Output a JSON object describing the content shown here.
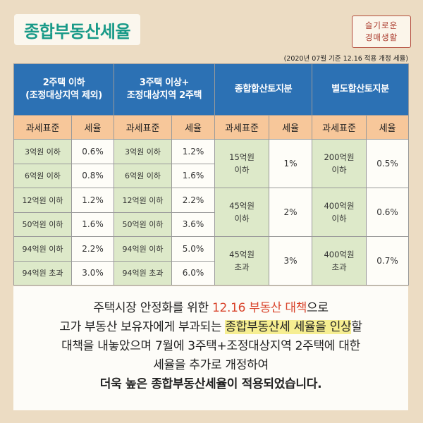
{
  "title": "종합부동산세율",
  "stamp": {
    "line1": "슬기로운",
    "line2": "경매생활"
  },
  "note": "(2020년 07월 기준  12.16 적용 개정 세율)",
  "table": {
    "headers": [
      {
        "line1": "2주택 이하",
        "line2": "(조정대상지역 제외)"
      },
      {
        "line1": "3주택 이상+",
        "line2": "조정대상지역 2주택"
      },
      {
        "line1": "종합합산토지분",
        "line2": ""
      },
      {
        "line1": "별도합산토지분",
        "line2": ""
      }
    ],
    "subheaders": [
      "과세표준",
      "세율",
      "과세표준",
      "세율",
      "과세표준",
      "세율",
      "과세표준",
      "세율"
    ],
    "house2": [
      {
        "base": "3억원 이하",
        "rate": "0.6%"
      },
      {
        "base": "6억원 이하",
        "rate": "0.8%"
      },
      {
        "base": "12억원 이하",
        "rate": "1.2%"
      },
      {
        "base": "50억원 이하",
        "rate": "1.6%"
      },
      {
        "base": "94억원 이하",
        "rate": "2.2%"
      },
      {
        "base": "94억원 초과",
        "rate": "3.0%"
      }
    ],
    "house3": [
      {
        "base": "3억원 이하",
        "rate": "1.2%"
      },
      {
        "base": "6억원 이하",
        "rate": "1.6%"
      },
      {
        "base": "12억원 이하",
        "rate": "2.2%"
      },
      {
        "base": "50억원 이하",
        "rate": "3.6%"
      },
      {
        "base": "94억원 이하",
        "rate": "5.0%"
      },
      {
        "base": "94억원 초과",
        "rate": "6.0%"
      }
    ],
    "land_combined": [
      {
        "base1": "15억원",
        "base2": "이하",
        "rate": "1%"
      },
      {
        "base1": "45억원",
        "base2": "이하",
        "rate": "2%"
      },
      {
        "base1": "45억원",
        "base2": "초과",
        "rate": "3%"
      }
    ],
    "land_separate": [
      {
        "base1": "200억원",
        "base2": "이하",
        "rate": "0.5%"
      },
      {
        "base1": "400억원",
        "base2": "이하",
        "rate": "0.6%"
      },
      {
        "base1": "400억원",
        "base2": "초과",
        "rate": "0.7%"
      }
    ]
  },
  "panel": {
    "l1_a": "주택시장 안정화를 위한 ",
    "l1_b": "12.16 부동산 대책",
    "l1_c": "으로",
    "l2_a": "고가 부동산 보유자에게 부과되는 ",
    "l2_b": "종합부동산세 세율을 인상",
    "l2_c": "할",
    "l3": "대책을 내놓았으며 7월에 3주택+조정대상지역 2주택에 대한",
    "l4": "세율을 추가로 개정하여",
    "l5": "더욱 높은 종합부동산세율이 적용되었습니다."
  },
  "colors": {
    "title": "#199a88",
    "header_bg": "#2c71b4",
    "subheader_bg": "#f7c79a",
    "green_cell": "#dde9c9",
    "highlight": "#f6ee91",
    "accent_red": "#d9442c"
  }
}
